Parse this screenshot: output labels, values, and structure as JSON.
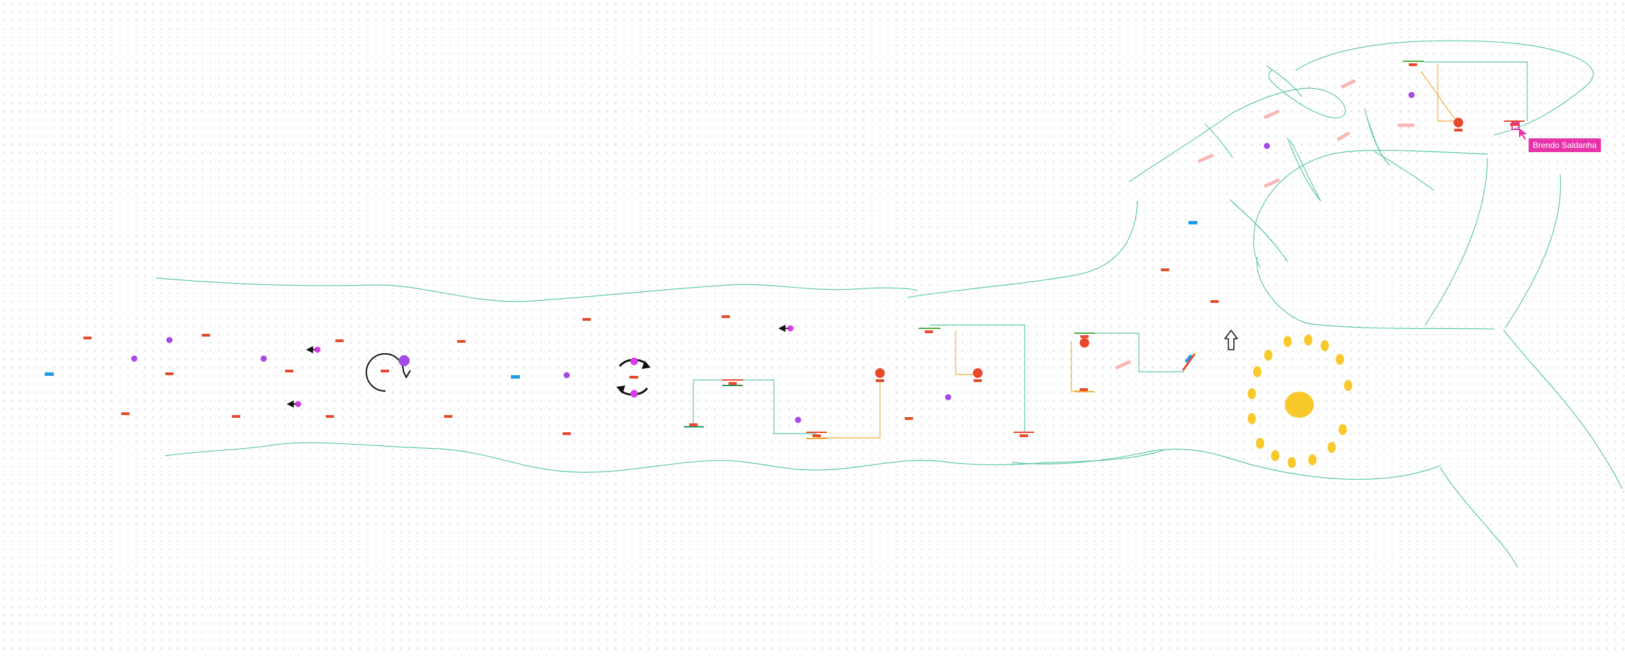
{
  "collaborator": {
    "name": "Brendo Saldanha",
    "color": "#e832a9"
  },
  "colors": {
    "background": "#ffffff",
    "grid_dot": "#d9dbe0",
    "stroke_teal": "#5cc7a4",
    "stroke_orange": "#f2a93b",
    "red_orange": "#e8482a",
    "purple": "#a448e6",
    "magenta": "#d43ee6",
    "blue": "#1c9be6",
    "yellow": "#f9c82a",
    "pink": "#f8b6b6",
    "green": "#4caf3e",
    "black": "#111111"
  },
  "icons": [
    "rotate-icon",
    "sync-arrows-icon",
    "arrow-up-icon",
    "arrow-left-icon",
    "cursor-pointer-icon"
  ]
}
